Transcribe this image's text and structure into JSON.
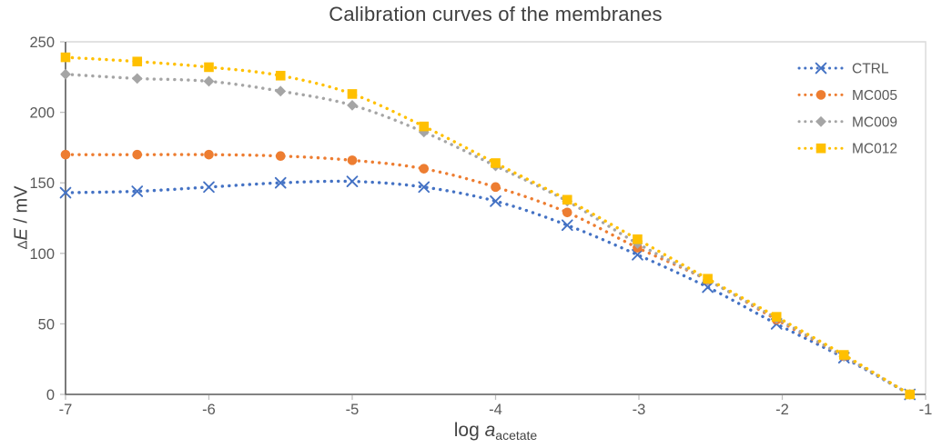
{
  "chart_data": {
    "type": "line",
    "title": "Calibration curves of the membranes",
    "line_style": "dotted",
    "smoothed": true,
    "grid": false,
    "legend_position": "top-right",
    "xlabel_parts": {
      "prefix": "log ",
      "variable": "a",
      "subscript": "acetate"
    },
    "ylabel_parts": {
      "delta": "Δ",
      "variable": "E",
      "unit": " / mV"
    },
    "xlim": [
      -7,
      -1
    ],
    "ylim": [
      0,
      250
    ],
    "x_ticks": [
      -7,
      -6,
      -5,
      -4,
      -3,
      -2,
      -1
    ],
    "y_ticks": [
      0,
      50,
      100,
      150,
      200,
      250
    ],
    "x": [
      -7,
      -6.5,
      -6,
      -5.5,
      -5,
      -4.5,
      -4,
      -3.5,
      -3.01,
      -2.52,
      -2.04,
      -1.57,
      -1.11
    ],
    "series": [
      {
        "name": "CTRL",
        "color": "#4472C4",
        "marker": "x",
        "values": [
          143,
          144,
          147,
          150,
          151,
          147,
          137,
          120,
          99,
          76,
          50,
          26,
          0
        ]
      },
      {
        "name": "MC005",
        "color": "#ED7D31",
        "marker": "circle",
        "values": [
          170,
          170,
          170,
          169,
          166,
          160,
          147,
          129,
          104,
          81,
          53,
          27,
          0
        ]
      },
      {
        "name": "MC009",
        "color": "#A5A5A5",
        "marker": "diamond",
        "values": [
          227,
          224,
          222,
          215,
          205,
          186,
          162,
          137,
          107,
          81,
          54,
          27,
          0
        ]
      },
      {
        "name": "MC012",
        "color": "#FFC000",
        "marker": "square",
        "values": [
          239,
          236,
          232,
          226,
          213,
          190,
          164,
          138,
          110,
          82,
          55,
          28,
          0
        ]
      }
    ]
  },
  "colors": {
    "background": "#FFFFFF",
    "title_text": "#404040",
    "axis_line": "#595959",
    "frame_line": "#D9D9D9",
    "tick_mark": "#BFBFBF",
    "tick_label": "#595959",
    "legend_text": "#595959"
  }
}
